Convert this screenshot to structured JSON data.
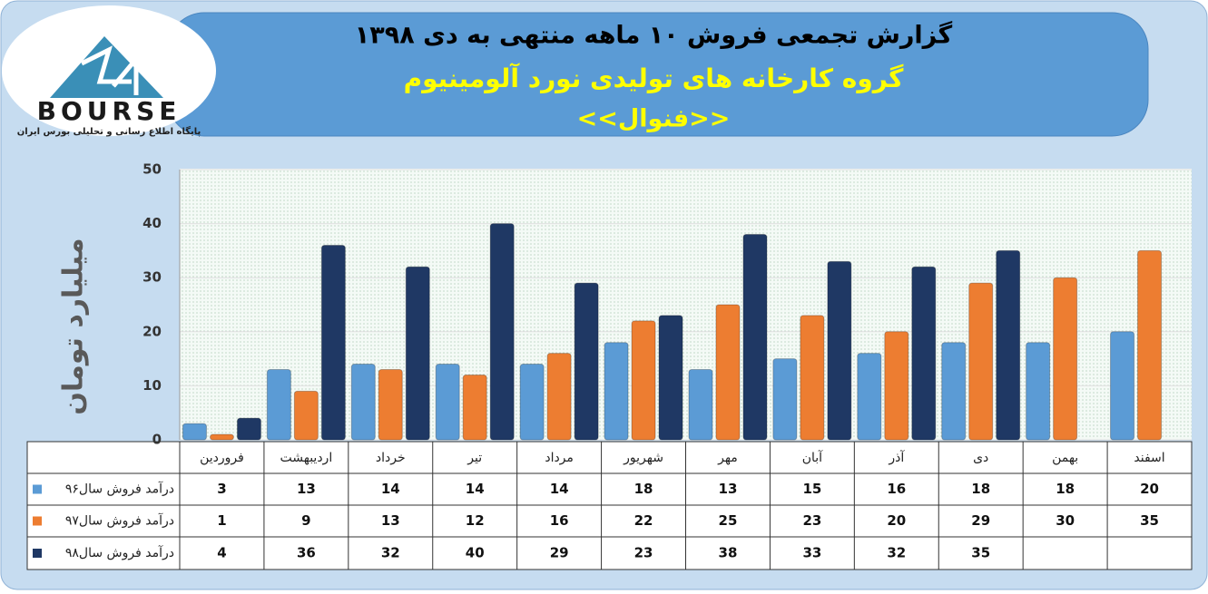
{
  "logo": {
    "name": "BOURSE",
    "tagline": "پایگاه اطلاع رسانی و تحلیلی بورس ایران"
  },
  "chart_data": {
    "type": "bar",
    "title": "گزارش تجمعی فروش  ۱۰ ماهه منتهی به دی ۱۳۹۸",
    "subtitle": "گروه کارخانه های تولیدی نورد آلومینیوم",
    "company": "<<فنوال>>",
    "y_label": "میلیارد تومان",
    "categories": [
      "فروردین",
      "اردیبهشت",
      "خرداد",
      "تیر",
      "مرداد",
      "شهریور",
      "مهر",
      "آبان",
      "آذر",
      "دی",
      "بهمن",
      "اسفند"
    ],
    "series": [
      {
        "name": "درآمد فروش سال۹۶",
        "color": "#5b9bd5",
        "values": [
          3,
          13,
          14,
          14,
          14,
          18,
          13,
          15,
          16,
          18,
          18,
          20
        ]
      },
      {
        "name": "درآمد فروش سال۹۷",
        "color": "#ed7d31",
        "values": [
          1,
          9,
          13,
          12,
          16,
          22,
          25,
          23,
          20,
          29,
          30,
          35
        ]
      },
      {
        "name": "درآمد فروش سال۹۸",
        "color": "#1f3864",
        "values": [
          4,
          36,
          32,
          40,
          29,
          23,
          38,
          33,
          32,
          35,
          null,
          null
        ]
      }
    ],
    "ylim": [
      0,
      50
    ],
    "yticks": [
      0,
      10,
      20,
      30,
      40,
      50
    ],
    "grid": true
  }
}
